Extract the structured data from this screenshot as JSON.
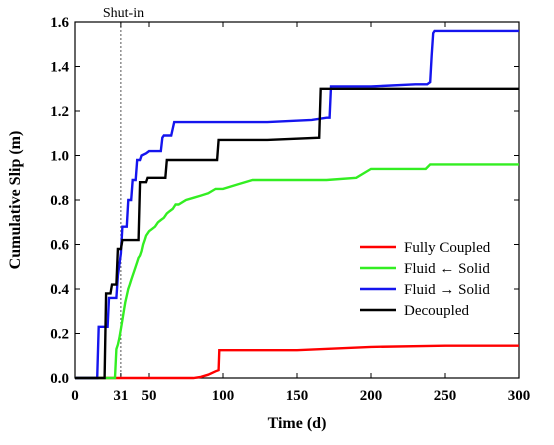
{
  "chart_data": {
    "type": "line",
    "xlabel": "Time (d)",
    "ylabel": "Cumulative Slip (m)",
    "xlim": [
      0,
      300
    ],
    "ylim": [
      0,
      1.6
    ],
    "xticks": [
      0,
      31,
      50,
      100,
      150,
      200,
      250,
      300
    ],
    "yticks": [
      0.0,
      0.2,
      0.4,
      0.6,
      0.8,
      1.0,
      1.2,
      1.4,
      1.6
    ],
    "xtick_labels": [
      "0",
      "31",
      "50",
      "100",
      "150",
      "200",
      "250",
      "300"
    ],
    "ytick_labels": [
      "0.0",
      "0.2",
      "0.4",
      "0.6",
      "0.8",
      "1.0",
      "1.2",
      "1.4",
      "1.6"
    ],
    "grid": false,
    "legend_position": "lower-right",
    "annotations": [
      {
        "text": "Shut-in",
        "x": 31
      }
    ],
    "series": [
      {
        "name": "Fully Coupled",
        "color": "#ff0000",
        "x": [
          0,
          80,
          85,
          90,
          95,
          97,
          97.5,
          100,
          150,
          200,
          250,
          300
        ],
        "y": [
          0,
          0,
          0.005,
          0.015,
          0.03,
          0.035,
          0.125,
          0.125,
          0.125,
          0.14,
          0.145,
          0.145
        ]
      },
      {
        "name": "Fluid ← Solid",
        "color": "#33ee22",
        "x": [
          0,
          27,
          28,
          29,
          30,
          31,
          32,
          33,
          34,
          35,
          36,
          37,
          38,
          39,
          40,
          41,
          42,
          43,
          44,
          45,
          46,
          47,
          48,
          49,
          50,
          52,
          54,
          56,
          58,
          60,
          62,
          64,
          66,
          68,
          70,
          75,
          80,
          85,
          90,
          95,
          100,
          110,
          120,
          150,
          170,
          190,
          200,
          237,
          240,
          270,
          300
        ],
        "y": [
          0,
          0,
          0.13,
          0.15,
          0.18,
          0.22,
          0.26,
          0.3,
          0.34,
          0.37,
          0.4,
          0.42,
          0.44,
          0.46,
          0.48,
          0.5,
          0.52,
          0.54,
          0.55,
          0.57,
          0.6,
          0.62,
          0.64,
          0.65,
          0.66,
          0.67,
          0.68,
          0.7,
          0.71,
          0.72,
          0.74,
          0.75,
          0.76,
          0.78,
          0.78,
          0.8,
          0.81,
          0.82,
          0.83,
          0.85,
          0.85,
          0.87,
          0.89,
          0.89,
          0.89,
          0.9,
          0.94,
          0.94,
          0.96,
          0.96,
          0.96
        ]
      },
      {
        "name": "Fluid → Solid",
        "color": "#1515ee",
        "x": [
          0,
          15,
          16,
          22,
          23,
          28,
          29,
          31,
          32,
          35,
          36,
          38,
          39,
          41,
          42,
          44,
          45,
          48,
          50,
          52,
          54,
          58,
          59,
          60,
          62,
          65,
          67,
          100,
          130,
          160,
          170,
          172,
          173,
          200,
          230,
          238,
          240,
          241,
          242,
          243,
          300
        ],
        "y": [
          0,
          0,
          0.23,
          0.23,
          0.36,
          0.36,
          0.46,
          0.56,
          0.68,
          0.68,
          0.8,
          0.8,
          0.89,
          0.89,
          0.98,
          0.98,
          1.0,
          1.01,
          1.02,
          1.02,
          1.02,
          1.02,
          1.08,
          1.09,
          1.09,
          1.09,
          1.15,
          1.15,
          1.15,
          1.16,
          1.17,
          1.17,
          1.31,
          1.31,
          1.32,
          1.32,
          1.33,
          1.45,
          1.55,
          1.56,
          1.56
        ]
      },
      {
        "name": "Decoupled",
        "color": "#000000",
        "x": [
          0,
          20,
          21,
          24,
          25,
          28,
          29,
          31,
          32,
          43,
          44,
          48,
          49,
          61,
          62,
          96,
          97,
          130,
          165,
          166,
          175,
          200,
          250,
          300
        ],
        "y": [
          0,
          0,
          0.38,
          0.38,
          0.42,
          0.42,
          0.58,
          0.58,
          0.62,
          0.62,
          0.88,
          0.88,
          0.9,
          0.9,
          0.98,
          0.98,
          1.07,
          1.07,
          1.08,
          1.3,
          1.3,
          1.3,
          1.3,
          1.3
        ]
      }
    ]
  }
}
